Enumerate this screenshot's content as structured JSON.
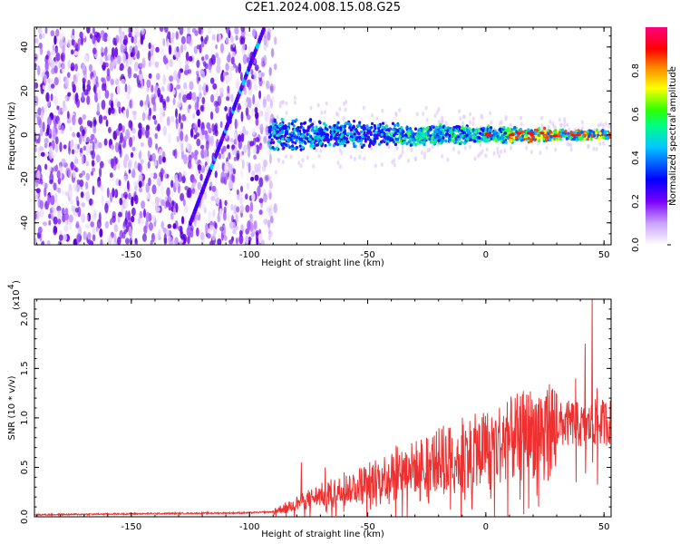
{
  "title": "C2E1.2024.008.15.08.G25",
  "colors": {
    "snr_line": "#ee3030",
    "spectrogram_noise": "#7b2cf0",
    "spectrogram_light": "#d9b8ff"
  },
  "chart_data": [
    {
      "type": "heatmap",
      "name": "spectrogram",
      "xlabel": "Height of straight line (km)",
      "ylabel": "Frequency (Hz)",
      "xlim": [
        -191,
        53
      ],
      "ylim": [
        -50,
        49
      ],
      "xticks": [
        -150,
        -100,
        -50,
        0,
        50
      ],
      "yticks": [
        -40,
        -20,
        0,
        20,
        40
      ],
      "colorbar": {
        "label": "Normalized spectral amplitude",
        "range": [
          0.0,
          1.0
        ],
        "ticks": [
          "0.0",
          "0.2",
          "0.4",
          "0.6",
          "0.8"
        ],
        "colormap": [
          "#ffffff",
          "#8a00ff",
          "#0000ff",
          "#00c0ff",
          "#00ff80",
          "#40ff00",
          "#ffff00",
          "#ff8000",
          "#ff0000",
          "#ff0080"
        ]
      },
      "regions": {
        "broadband_noise_x": [
          -191,
          -89
        ],
        "diagonal_trace": {
          "x": [
            -125,
            -94
          ],
          "y": [
            -40,
            48
          ]
        },
        "signal_band_center_hz": 0,
        "signal_band_halfwidth_hz": [
          8,
          2
        ],
        "signal_band_x": [
          -92,
          53
        ]
      }
    },
    {
      "type": "line",
      "name": "snr",
      "xlabel": "Height of straight line (km)",
      "ylabel": "SNR (10 * v/v)",
      "yscale_note": "(x10",
      "yscale_exp": "4",
      "xlim": [
        -191,
        53
      ],
      "ylim": [
        0,
        2.2
      ],
      "xticks": [
        -150,
        -100,
        -50,
        0,
        50
      ],
      "yticks": [
        0.0,
        0.5,
        1.0,
        1.5,
        2.0
      ],
      "envelope": [
        [
          -191,
          0.02
        ],
        [
          -150,
          0.03
        ],
        [
          -100,
          0.04
        ],
        [
          -90,
          0.05
        ],
        [
          -80,
          0.14
        ],
        [
          -70,
          0.22
        ],
        [
          -60,
          0.28
        ],
        [
          -50,
          0.36
        ],
        [
          -40,
          0.44
        ],
        [
          -30,
          0.5
        ],
        [
          -20,
          0.58
        ],
        [
          -10,
          0.64
        ],
        [
          0,
          0.7
        ],
        [
          10,
          0.78
        ],
        [
          20,
          0.86
        ],
        [
          30,
          0.92
        ],
        [
          37,
          0.95
        ],
        [
          42,
          0.9
        ],
        [
          46,
          0.95
        ],
        [
          53,
          0.96
        ]
      ],
      "peaks": [
        [
          -78,
          0.55
        ],
        [
          -68,
          0.5
        ],
        [
          -60,
          0.45
        ],
        [
          -48,
          0.5
        ],
        [
          -38,
          0.72
        ],
        [
          -28,
          0.65
        ],
        [
          -25,
          0.8
        ],
        [
          -18,
          0.92
        ],
        [
          -10,
          1.0
        ],
        [
          -6,
          0.3
        ],
        [
          38,
          1.4
        ],
        [
          42,
          1.75
        ],
        [
          45,
          2.2
        ],
        [
          47,
          1.3
        ]
      ]
    }
  ]
}
